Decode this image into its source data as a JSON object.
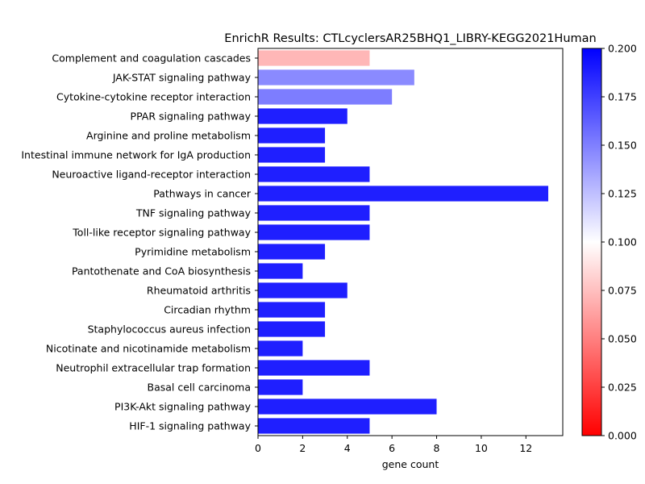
{
  "chart_data": {
    "type": "bar",
    "orientation": "horizontal",
    "title": "EnrichR Results: CTLcyclersAR25BHQ1_LIBRY-KEGG2021Human",
    "xlabel": "gene count",
    "ylabel": "",
    "xlim": [
      0,
      13.65
    ],
    "xticks": [
      "0",
      "2",
      "4",
      "6",
      "8",
      "10",
      "12"
    ],
    "grid": false,
    "categories": [
      "Complement and coagulation cascades",
      "JAK-STAT signaling pathway",
      "Cytokine-cytokine receptor interaction",
      "PPAR signaling pathway",
      "Arginine and proline metabolism",
      "Intestinal immune network for IgA production",
      "Neuroactive ligand-receptor interaction",
      "Pathways in cancer",
      "TNF signaling pathway",
      "Toll-like receptor signaling pathway",
      "Pyrimidine metabolism",
      "Pantothenate and CoA biosynthesis",
      "Rheumatoid arthritis",
      "Circadian rhythm",
      "Staphylococcus aureus infection",
      "Nicotinate and nicotinamide metabolism",
      "Neutrophil extracellular trap formation",
      "Basal cell carcinoma",
      "PI3K-Akt signaling pathway",
      "HIF-1 signaling pathway"
    ],
    "values": [
      5,
      7,
      6,
      4,
      3,
      3,
      5,
      13,
      5,
      5,
      3,
      2,
      4,
      3,
      3,
      2,
      5,
      2,
      8,
      5
    ],
    "color_values": [
      0.068,
      0.152,
      0.158,
      0.2,
      0.2,
      0.2,
      0.2,
      0.2,
      0.2,
      0.2,
      0.2,
      0.2,
      0.2,
      0.2,
      0.2,
      0.2,
      0.2,
      0.2,
      0.2,
      0.2
    ],
    "colorbar": {
      "range": [
        0,
        0.2
      ],
      "colormap": "bwr_r",
      "ticks": [
        "0.000",
        "0.025",
        "0.050",
        "0.075",
        "0.100",
        "0.125",
        "0.150",
        "0.175",
        "0.200"
      ],
      "colors": {
        "low": "#ff0000",
        "mid": "#ffffff",
        "high": "#0000ff"
      }
    },
    "bar_alpha": 0.88
  }
}
